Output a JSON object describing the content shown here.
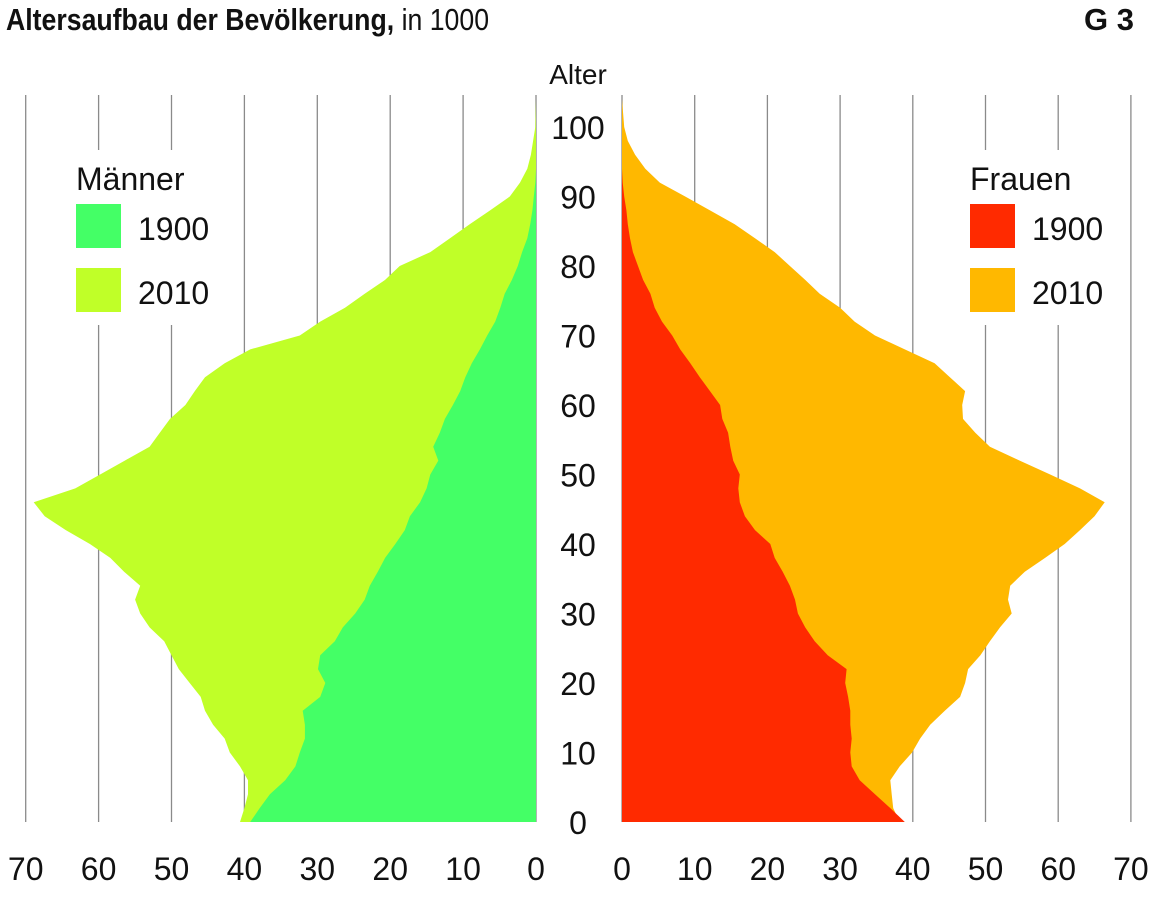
{
  "header": {
    "title_bold": "Altersaufbau der Bevölkerung,",
    "title_rest": " in 1000",
    "code": "G 3"
  },
  "chart_data": {
    "type": "population-pyramid (area)",
    "title": "Altersaufbau der Bevölkerung, in 1000",
    "ylabel": "Alter",
    "y_ticks": [
      0,
      10,
      20,
      30,
      40,
      50,
      60,
      70,
      80,
      90,
      100
    ],
    "x_ticks_left": [
      70,
      60,
      50,
      40,
      30,
      20,
      10,
      0
    ],
    "x_ticks_right": [
      0,
      10,
      20,
      30,
      40,
      50,
      60,
      70
    ],
    "xlim": [
      0,
      70
    ],
    "ylim": [
      0,
      105
    ],
    "grid": "vertical",
    "legend_placement": "top-left (Männer), top-right (Frauen)",
    "ages": [
      0,
      2,
      4,
      6,
      8,
      10,
      12,
      14,
      16,
      18,
      20,
      22,
      24,
      26,
      28,
      30,
      32,
      34,
      36,
      38,
      40,
      42,
      44,
      46,
      48,
      50,
      52,
      54,
      56,
      58,
      60,
      62,
      64,
      66,
      68,
      70,
      72,
      74,
      76,
      78,
      80,
      82,
      84,
      86,
      88,
      90,
      92,
      94,
      96,
      98,
      100,
      104
    ],
    "groups": [
      {
        "name": "Männer",
        "side": "left",
        "series": [
          {
            "name": "2010",
            "color": "#c0ff28",
            "values": [
              40.6,
              40,
              39.5,
              39.5,
              40.6,
              42,
              42.7,
              44.3,
              45.4,
              46,
              47.5,
              49,
              50,
              51,
              53,
              54.3,
              55,
              54.3,
              56.5,
              58.4,
              61.2,
              64.5,
              67.4,
              68.9,
              63.2,
              59.8,
              56.4,
              53,
              51.6,
              50.2,
              48.1,
              46.8,
              45.4,
              42.7,
              39.2,
              32.4,
              29.6,
              26.2,
              23.5,
              20.7,
              18.7,
              14.5,
              11.8,
              9.1,
              6.3,
              3.6,
              2.2,
              1.2,
              0.7,
              0.4,
              0.1,
              0
            ]
          },
          {
            "name": "1900",
            "color": "#44ff66",
            "values": [
              39.2,
              37.9,
              36.5,
              34.4,
              33,
              32.4,
              31.7,
              31.7,
              32,
              29.6,
              28.9,
              29.9,
              29.6,
              27.6,
              26.5,
              24.8,
              23.5,
              22.8,
              21.7,
              20.7,
              19.3,
              18,
              17.3,
              15.9,
              15,
              14.5,
              13.4,
              14.1,
              13.2,
              12.5,
              11.4,
              10.4,
              9.7,
              8.8,
              7.7,
              6.7,
              5.6,
              4.9,
              4.3,
              3.3,
              2.5,
              1.9,
              1.2,
              0.8,
              0.5,
              0.3,
              0.1,
              0,
              0,
              0,
              0,
              0
            ]
          }
        ]
      },
      {
        "name": "Frauen",
        "side": "right",
        "series": [
          {
            "name": "2010",
            "color": "#ffb800",
            "values": [
              38.2,
              37.3,
              37.1,
              36.9,
              38.2,
              39.9,
              41,
              42.4,
              44.4,
              46.5,
              47.2,
              47.6,
              49.3,
              50.6,
              52,
              53.6,
              53.1,
              53.4,
              55.4,
              58.2,
              60.9,
              63,
              65,
              66.4,
              63,
              58.9,
              54.7,
              50.6,
              48.6,
              46.9,
              46.8,
              47.2,
              45.1,
              43,
              38.9,
              34.8,
              32,
              30,
              27.2,
              25.2,
              23.1,
              21,
              18.3,
              15.5,
              12.1,
              8.7,
              5.2,
              3.2,
              1.8,
              0.8,
              0.3,
              0
            ]
          },
          {
            "name": "1900",
            "color": "#ff2a00",
            "values": [
              38.9,
              36.9,
              34.8,
              32.7,
              31.6,
              31.4,
              31.6,
              31.4,
              31.4,
              31.1,
              30.7,
              30.9,
              28.3,
              26.5,
              25.2,
              24.2,
              23.8,
              23.1,
              22.1,
              21,
              20.4,
              18.3,
              16.9,
              16.2,
              16,
              16.2,
              15.3,
              14.9,
              14.6,
              13.8,
              13.5,
              12.1,
              10.7,
              9.4,
              8,
              6.9,
              5.5,
              4.5,
              3.9,
              2.9,
              2.2,
              1.5,
              1.1,
              0.8,
              0.6,
              0.3,
              0.1,
              0,
              0,
              0,
              0,
              0
            ]
          }
        ]
      }
    ]
  }
}
